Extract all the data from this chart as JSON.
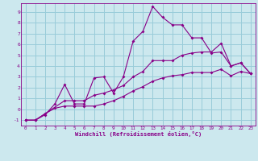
{
  "xlabel": "Windchill (Refroidissement éolien,°C)",
  "bg_color": "#cce8ee",
  "grid_color": "#99ccd9",
  "line_color": "#880088",
  "xlim": [
    -0.5,
    23.5
  ],
  "ylim": [
    -1.5,
    9.8
  ],
  "xticks": [
    0,
    1,
    2,
    3,
    4,
    5,
    6,
    7,
    8,
    9,
    10,
    11,
    12,
    13,
    14,
    15,
    16,
    17,
    18,
    19,
    20,
    21,
    22,
    23
  ],
  "yticks": [
    -1,
    0,
    1,
    2,
    3,
    4,
    5,
    6,
    7,
    8,
    9
  ],
  "line1_x": [
    0,
    1,
    2,
    3,
    4,
    5,
    6,
    7,
    8,
    9,
    10,
    11,
    12,
    13,
    14,
    15,
    16,
    17,
    18,
    19,
    20,
    21,
    22,
    23
  ],
  "line1_y": [
    -1,
    -1,
    -0.5,
    0.5,
    2.3,
    0.5,
    0.5,
    2.9,
    3.0,
    1.5,
    3.0,
    6.3,
    7.2,
    9.5,
    8.5,
    7.8,
    7.8,
    6.6,
    6.6,
    5.2,
    5.3,
    4.0,
    4.3,
    3.3
  ],
  "line2_x": [
    0,
    1,
    4,
    5,
    6,
    7,
    8,
    9,
    10,
    11,
    12,
    13,
    14,
    15,
    16,
    17,
    18,
    19,
    20,
    21,
    22,
    23
  ],
  "line2_y": [
    -1,
    -1,
    0.8,
    0.8,
    0.8,
    1.3,
    1.5,
    1.8,
    2.2,
    3.0,
    3.5,
    4.5,
    4.5,
    4.5,
    5.0,
    5.2,
    5.3,
    5.3,
    6.1,
    4.0,
    4.3,
    3.3
  ],
  "line3_x": [
    0,
    1,
    2,
    3,
    4,
    5,
    6,
    7,
    8,
    9,
    10,
    11,
    12,
    13,
    14,
    15,
    16,
    17,
    18,
    19,
    20,
    21,
    22,
    23
  ],
  "line3_y": [
    -1,
    -1,
    -0.4,
    0.1,
    0.3,
    0.3,
    0.3,
    0.3,
    0.5,
    0.8,
    1.2,
    1.7,
    2.1,
    2.6,
    2.9,
    3.1,
    3.2,
    3.4,
    3.4,
    3.4,
    3.7,
    3.1,
    3.5,
    3.3
  ]
}
